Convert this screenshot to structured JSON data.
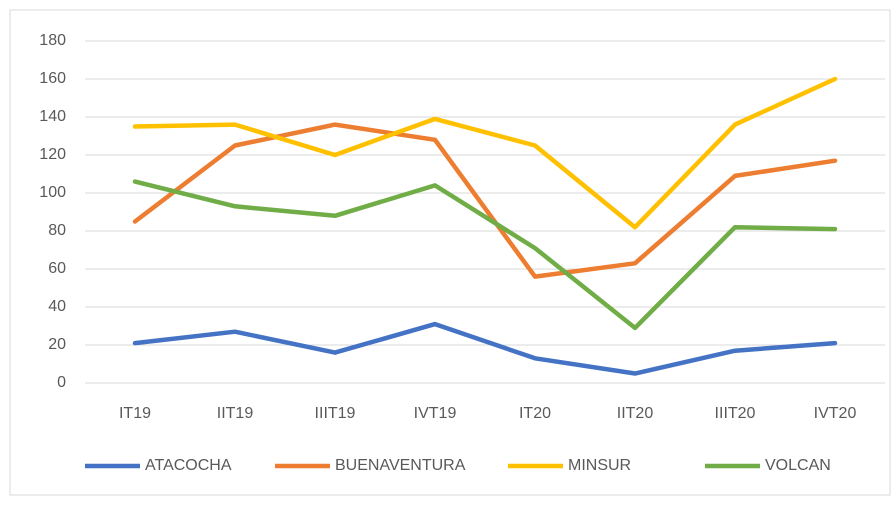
{
  "chart_data": {
    "type": "line",
    "categories": [
      "IT19",
      "IIT19",
      "IIIT19",
      "IVT19",
      "IT20",
      "IIT20",
      "IIIT20",
      "IVT20"
    ],
    "series": [
      {
        "name": "ATACOCHA",
        "color": "#4472c4",
        "values": [
          21,
          27,
          16,
          31,
          13,
          5,
          17,
          21
        ]
      },
      {
        "name": "BUENAVENTURA",
        "color": "#ed7d31",
        "values": [
          85,
          125,
          136,
          128,
          56,
          63,
          109,
          117
        ]
      },
      {
        "name": "MINSUR",
        "color": "#ffc000",
        "values": [
          135,
          136,
          120,
          139,
          125,
          82,
          136,
          160
        ]
      },
      {
        "name": "VOLCAN",
        "color": "#70ad47",
        "values": [
          106,
          93,
          88,
          104,
          71,
          29,
          82,
          81
        ]
      }
    ],
    "ylim": [
      0,
      180
    ],
    "yticks": [
      0,
      20,
      40,
      60,
      80,
      100,
      120,
      140,
      160,
      180
    ],
    "grid": true,
    "legend": "bottom"
  }
}
